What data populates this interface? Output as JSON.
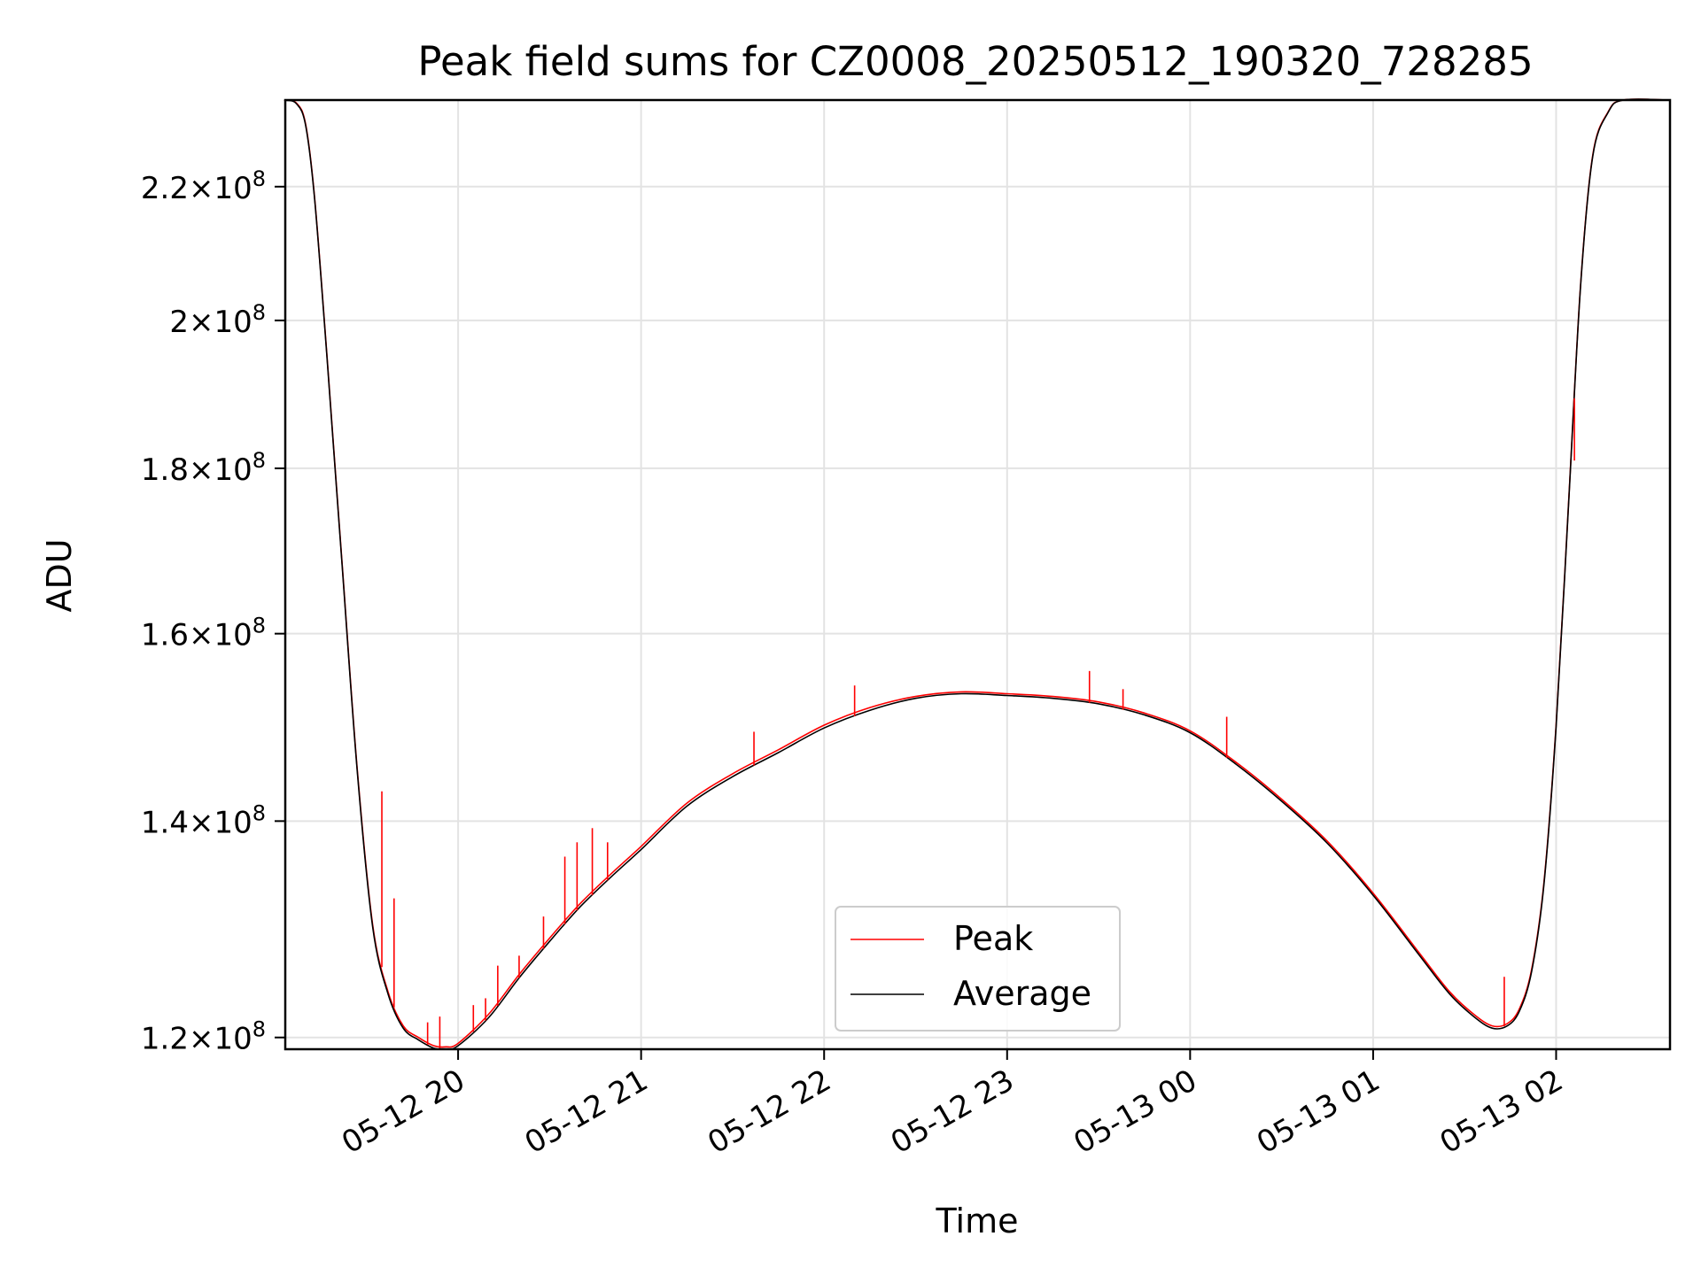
{
  "chart_data": {
    "type": "line",
    "title": "Peak field sums for CZ0008_20250512_190320_728285",
    "xlabel": "Time",
    "ylabel": "ADU",
    "y_scale": "log",
    "ylim": [
      119000000,
      234000000
    ],
    "xlim": [
      "2025-05-12 19:03:20",
      "2025-05-13 02:37:20"
    ],
    "grid": true,
    "legend_position": "lower center",
    "x_ticks": [
      {
        "label": "05-12 20",
        "t": "2025-05-12 20:00"
      },
      {
        "label": "05-12 21",
        "t": "2025-05-12 21:00"
      },
      {
        "label": "05-12 22",
        "t": "2025-05-12 22:00"
      },
      {
        "label": "05-12 23",
        "t": "2025-05-12 23:00"
      },
      {
        "label": "05-13 00",
        "t": "2025-05-13 00:00"
      },
      {
        "label": "05-13 01",
        "t": "2025-05-13 01:00"
      },
      {
        "label": "05-13 02",
        "t": "2025-05-13 02:00"
      }
    ],
    "y_ticks": [
      {
        "mantissa": "1.2",
        "exp": "8",
        "value": 120000000
      },
      {
        "mantissa": "1.4",
        "exp": "8",
        "value": 140000000
      },
      {
        "mantissa": "1.6",
        "exp": "8",
        "value": 160000000
      },
      {
        "mantissa": "1.8",
        "exp": "8",
        "value": 180000000
      },
      {
        "mantissa": "2",
        "exp": "8",
        "value": 200000000
      },
      {
        "mantissa": "2.2",
        "exp": "8",
        "value": 220000000
      }
    ],
    "series": [
      {
        "name": "Peak",
        "color": "#ff0000",
        "x": [
          "2025-05-12 19:03",
          "2025-05-12 19:07",
          "2025-05-12 19:10",
          "2025-05-12 19:13",
          "2025-05-12 19:17",
          "2025-05-12 19:22",
          "2025-05-12 19:27",
          "2025-05-12 19:32",
          "2025-05-12 19:37",
          "2025-05-12 19:42",
          "2025-05-12 19:47",
          "2025-05-12 19:52",
          "2025-05-12 19:56",
          "2025-05-12 20:00",
          "2025-05-12 20:10",
          "2025-05-12 20:20",
          "2025-05-12 20:30",
          "2025-05-12 20:40",
          "2025-05-12 20:50",
          "2025-05-12 21:00",
          "2025-05-12 21:15",
          "2025-05-12 21:30",
          "2025-05-12 21:45",
          "2025-05-12 22:00",
          "2025-05-12 22:15",
          "2025-05-12 22:30",
          "2025-05-12 22:45",
          "2025-05-12 23:00",
          "2025-05-12 23:15",
          "2025-05-12 23:30",
          "2025-05-12 23:45",
          "2025-05-13 00:00",
          "2025-05-13 00:15",
          "2025-05-13 00:30",
          "2025-05-13 00:45",
          "2025-05-13 01:00",
          "2025-05-13 01:15",
          "2025-05-13 01:25",
          "2025-05-13 01:33",
          "2025-05-13 01:39",
          "2025-05-13 01:44",
          "2025-05-13 01:48",
          "2025-05-13 01:52",
          "2025-05-13 01:56",
          "2025-05-13 02:00",
          "2025-05-13 02:04",
          "2025-05-13 02:08",
          "2025-05-13 02:12",
          "2025-05-13 02:17",
          "2025-05-13 02:22",
          "2025-05-13 02:37"
        ],
        "values": [
          234000000,
          233500000,
          230000000,
          218000000,
          195000000,
          168000000,
          145000000,
          130000000,
          124000000,
          121000000,
          120000000,
          119300000,
          119200000,
          119500000,
          122000000,
          125500000,
          128800000,
          132000000,
          134800000,
          137500000,
          141800000,
          144800000,
          147300000,
          149900000,
          151800000,
          153000000,
          153500000,
          153300000,
          153000000,
          152400000,
          151200000,
          149300000,
          146000000,
          142200000,
          138000000,
          133000000,
          127500000,
          124000000,
          122000000,
          121000000,
          121200000,
          122500000,
          126000000,
          134000000,
          150000000,
          175000000,
          205000000,
          225000000,
          232000000,
          234000000,
          234000000
        ]
      },
      {
        "name": "Average",
        "color": "#000000",
        "x": [
          "2025-05-12 19:03",
          "2025-05-12 19:07",
          "2025-05-12 19:10",
          "2025-05-12 19:13",
          "2025-05-12 19:17",
          "2025-05-12 19:22",
          "2025-05-12 19:27",
          "2025-05-12 19:32",
          "2025-05-12 19:37",
          "2025-05-12 19:42",
          "2025-05-12 19:47",
          "2025-05-12 19:52",
          "2025-05-12 19:56",
          "2025-05-12 20:00",
          "2025-05-12 20:10",
          "2025-05-12 20:20",
          "2025-05-12 20:30",
          "2025-05-12 20:40",
          "2025-05-12 20:50",
          "2025-05-12 21:00",
          "2025-05-12 21:15",
          "2025-05-12 21:30",
          "2025-05-12 21:45",
          "2025-05-12 22:00",
          "2025-05-12 22:15",
          "2025-05-12 22:30",
          "2025-05-12 22:45",
          "2025-05-12 23:00",
          "2025-05-12 23:15",
          "2025-05-12 23:30",
          "2025-05-12 23:45",
          "2025-05-13 00:00",
          "2025-05-13 00:15",
          "2025-05-13 00:30",
          "2025-05-13 00:45",
          "2025-05-13 01:00",
          "2025-05-13 01:15",
          "2025-05-13 01:25",
          "2025-05-13 01:33",
          "2025-05-13 01:39",
          "2025-05-13 01:44",
          "2025-05-13 01:48",
          "2025-05-13 01:52",
          "2025-05-13 01:56",
          "2025-05-13 02:00",
          "2025-05-13 02:04",
          "2025-05-13 02:08",
          "2025-05-13 02:12",
          "2025-05-13 02:17",
          "2025-05-13 02:22",
          "2025-05-13 02:37"
        ],
        "values": [
          234000000,
          233400000,
          229800000,
          217800000,
          194800000,
          167800000,
          144800000,
          129800000,
          123800000,
          120800000,
          119800000,
          119100000,
          119000000,
          119300000,
          121700000,
          125200000,
          128500000,
          131700000,
          134500000,
          137200000,
          141500000,
          144500000,
          147000000,
          149600000,
          151500000,
          152800000,
          153300000,
          153100000,
          152800000,
          152200000,
          151000000,
          149100000,
          145800000,
          142000000,
          137800000,
          132800000,
          127300000,
          123800000,
          121800000,
          120800000,
          121000000,
          122300000,
          125800000,
          133800000,
          149800000,
          174800000,
          204800000,
          224800000,
          231900000,
          234000000,
          234000000
        ]
      }
    ],
    "spikes": [
      {
        "t": "2025-05-12 19:35",
        "value": 143000000
      },
      {
        "t": "2025-05-12 19:39",
        "value": 132500000
      },
      {
        "t": "2025-05-12 19:50",
        "value": 121300000
      },
      {
        "t": "2025-05-12 19:54",
        "value": 121800000
      },
      {
        "t": "2025-05-12 20:05",
        "value": 122800000
      },
      {
        "t": "2025-05-12 20:09",
        "value": 123400000
      },
      {
        "t": "2025-05-12 20:13",
        "value": 126300000
      },
      {
        "t": "2025-05-12 20:20",
        "value": 127200000
      },
      {
        "t": "2025-05-12 20:28",
        "value": 130800000
      },
      {
        "t": "2025-05-12 20:35",
        "value": 136500000
      },
      {
        "t": "2025-05-12 20:39",
        "value": 137900000
      },
      {
        "t": "2025-05-12 20:44",
        "value": 139300000
      },
      {
        "t": "2025-05-12 20:49",
        "value": 137900000
      },
      {
        "t": "2025-05-12 21:37",
        "value": 149200000
      },
      {
        "t": "2025-05-12 22:10",
        "value": 154200000
      },
      {
        "t": "2025-05-12 23:27",
        "value": 155800000
      },
      {
        "t": "2025-05-12 23:38",
        "value": 153800000
      },
      {
        "t": "2025-05-13 00:12",
        "value": 150800000
      },
      {
        "t": "2025-05-13 01:43",
        "value": 125300000
      },
      {
        "t": "2025-05-13 02:06",
        "value": 181000000
      }
    ]
  }
}
